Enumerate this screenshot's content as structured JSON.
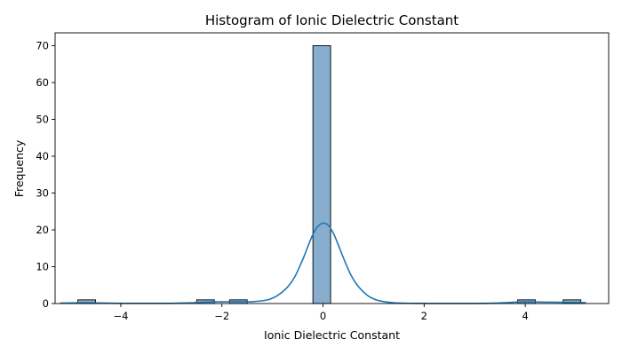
{
  "chart_data": {
    "type": "bar",
    "title": "Histogram of Ionic Dielectric Constant",
    "xlabel": "Ionic Dielectric Constant",
    "ylabel": "Frequency",
    "xlim": [
      -5.3,
      5.65
    ],
    "ylim": [
      0,
      73.5
    ],
    "x_ticks": [
      -4,
      -2,
      0,
      2,
      4
    ],
    "y_ticks": [
      0,
      10,
      20,
      30,
      40,
      50,
      60,
      70
    ],
    "bins": [
      {
        "x0": -4.85,
        "x1": -4.5,
        "count": 1
      },
      {
        "x0": -2.5,
        "x1": -2.15,
        "count": 1
      },
      {
        "x0": -1.85,
        "x1": -1.5,
        "count": 1
      },
      {
        "x0": -0.2,
        "x1": 0.15,
        "count": 70
      },
      {
        "x0": 3.85,
        "x1": 4.2,
        "count": 1
      },
      {
        "x0": 4.75,
        "x1": 5.1,
        "count": 1
      }
    ],
    "kde": {
      "x": [
        -5.2,
        -4.7,
        -4.4,
        -4.0,
        -3.5,
        -3.0,
        -2.6,
        -2.3,
        -2.0,
        -1.7,
        -1.4,
        -1.1,
        -0.9,
        -0.7,
        -0.55,
        -0.4,
        -0.3,
        -0.2,
        -0.1,
        0.0,
        0.1,
        0.2,
        0.3,
        0.4,
        0.55,
        0.7,
        0.9,
        1.1,
        1.4,
        1.8,
        2.2,
        2.6,
        3.0,
        3.4,
        3.7,
        4.0,
        4.3,
        4.6,
        4.9,
        5.2
      ],
      "y": [
        0.1,
        0.2,
        0.15,
        0.05,
        0.05,
        0.05,
        0.2,
        0.4,
        0.45,
        0.5,
        0.5,
        1.0,
        2.2,
        4.5,
        7.5,
        12.0,
        15.5,
        18.8,
        21.0,
        21.8,
        21.3,
        19.2,
        16.0,
        12.5,
        7.8,
        4.6,
        2.0,
        0.8,
        0.2,
        0.05,
        0.02,
        0.02,
        0.02,
        0.1,
        0.3,
        0.45,
        0.4,
        0.35,
        0.3,
        0.25
      ]
    },
    "bar_color": "#87aecf",
    "bar_edge_color": "#000000",
    "line_color": "#1f77b4",
    "grid": false,
    "legend": "none"
  }
}
